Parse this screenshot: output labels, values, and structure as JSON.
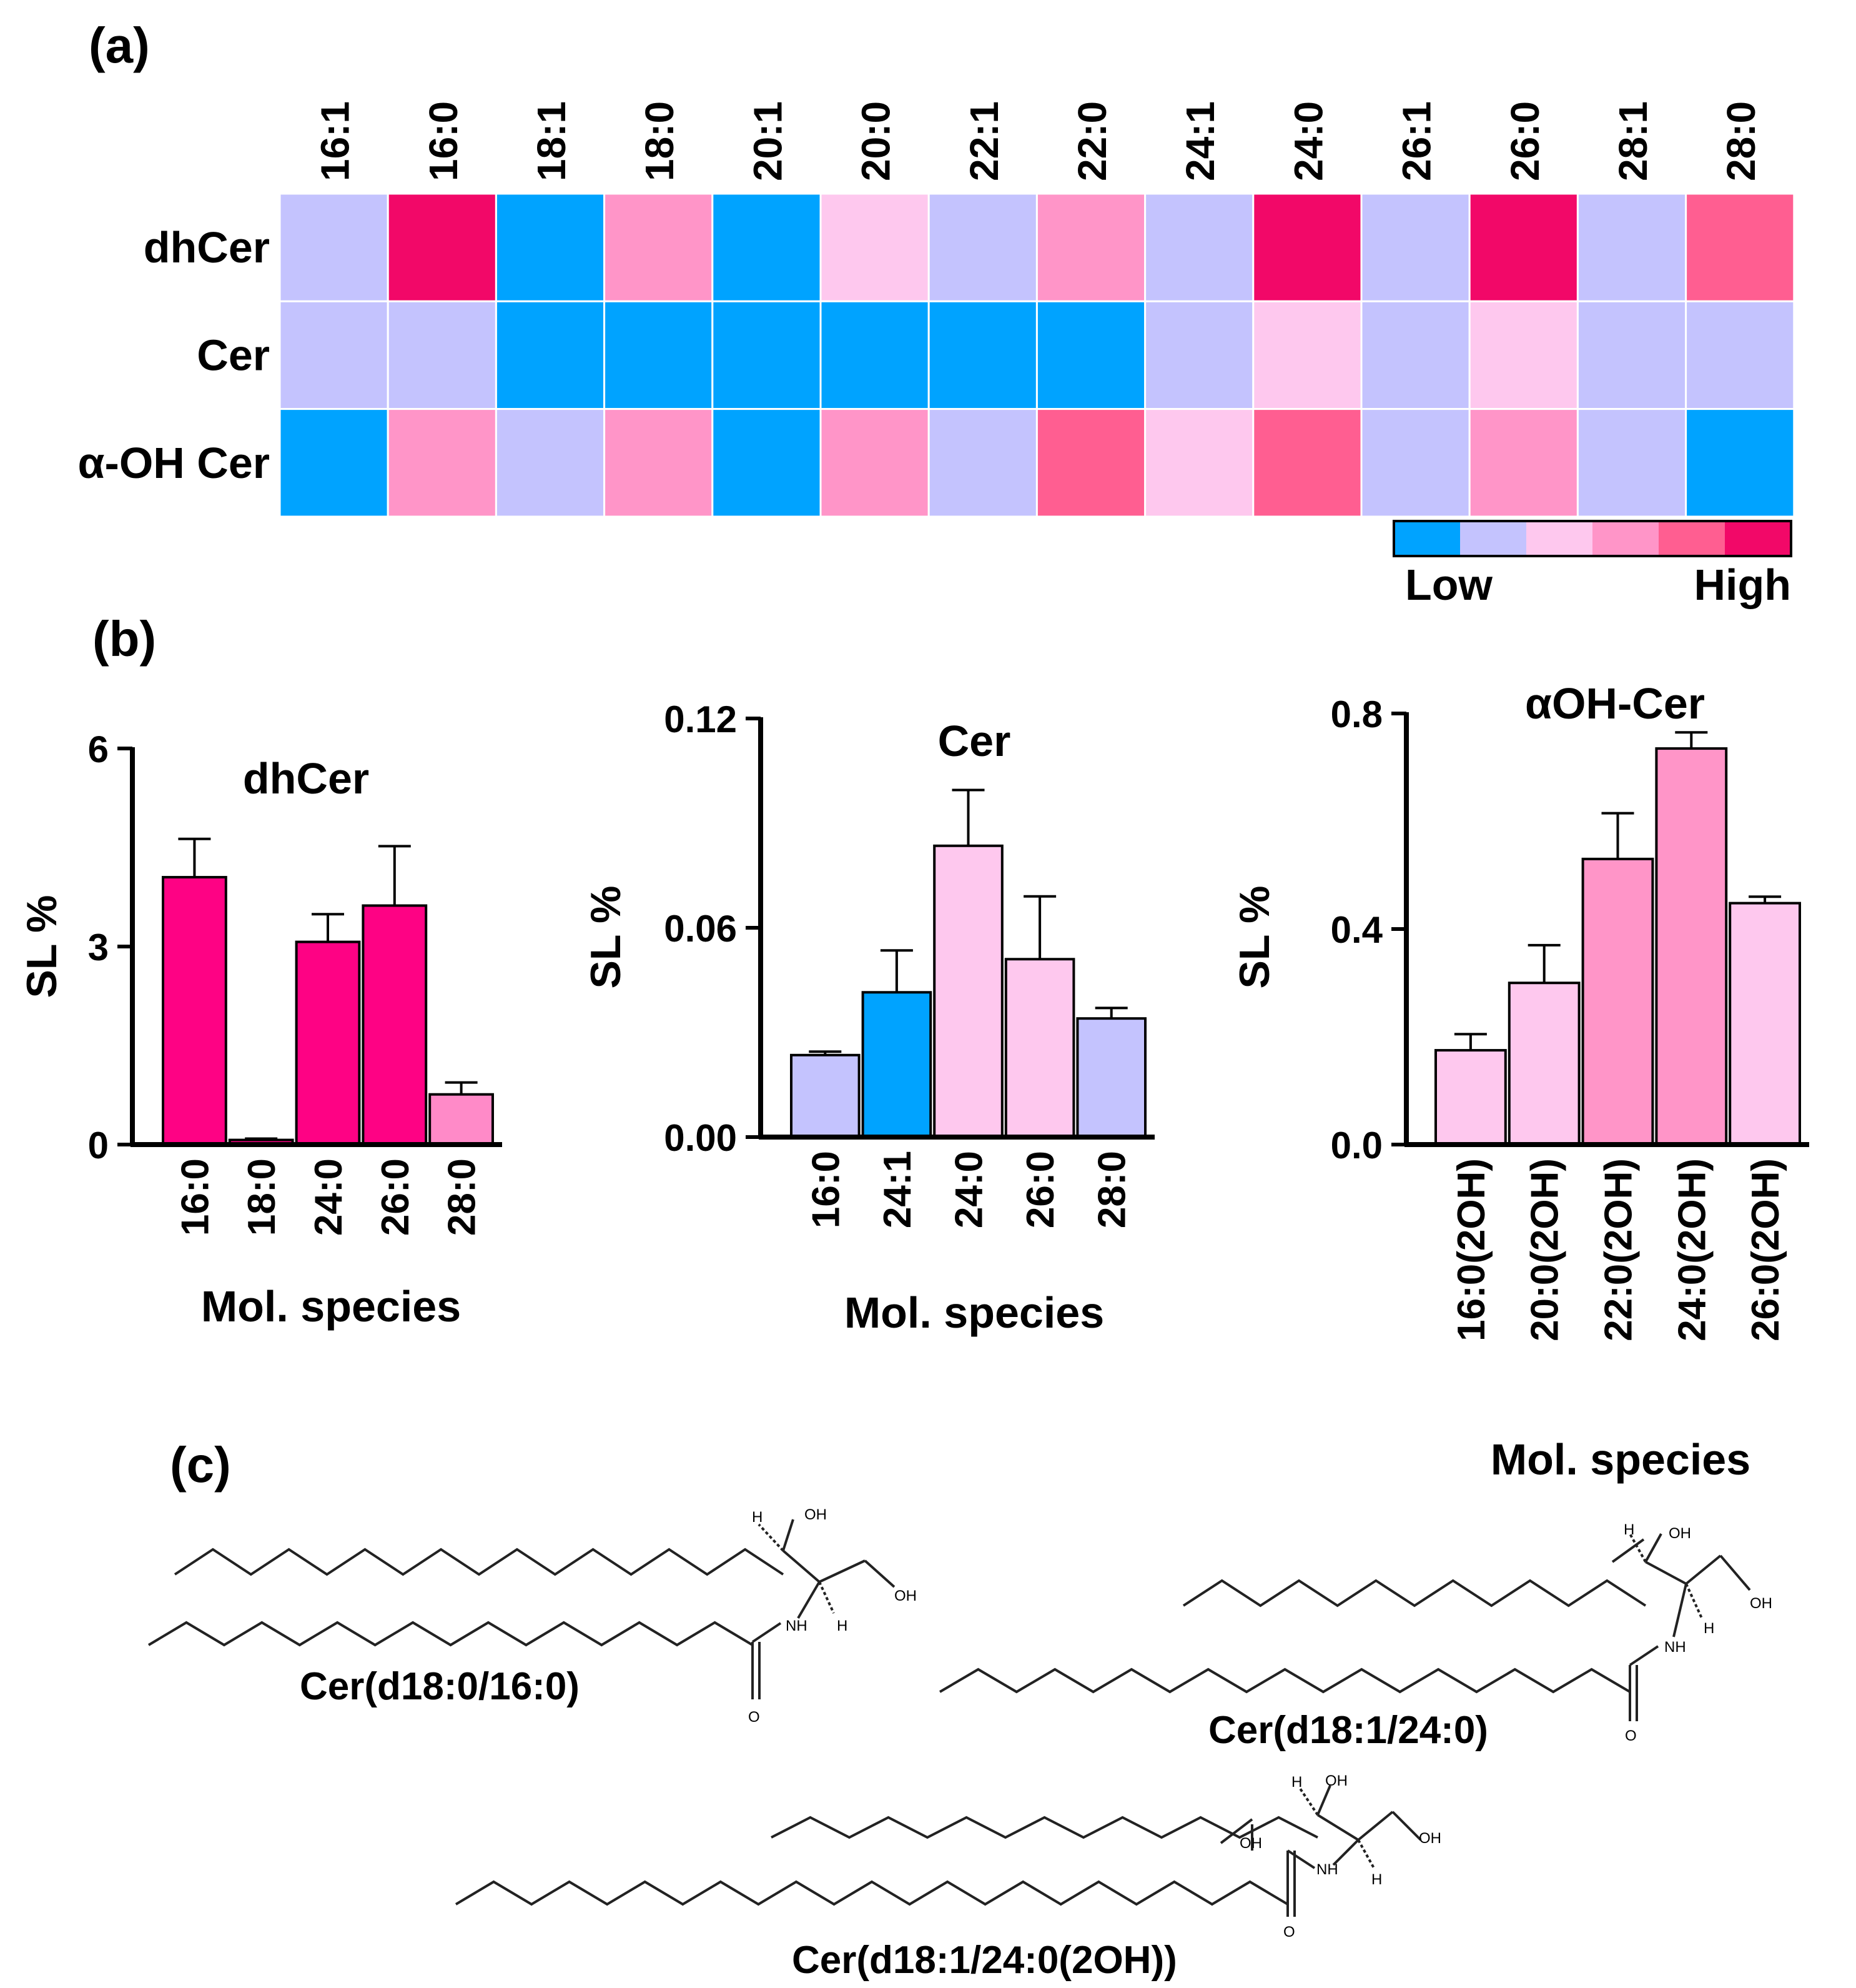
{
  "panels": {
    "a": "(a)",
    "b": "(b)",
    "c": "(c)"
  },
  "palette": [
    "#00a3ff",
    "#c4c3fe",
    "#fec8ee",
    "#ff95c8",
    "#ff5e91",
    "#f20868"
  ],
  "chart_data": [
    {
      "type": "heatmap",
      "columns": [
        "16:1",
        "16:0",
        "18:1",
        "18:0",
        "20:1",
        "20:0",
        "22:1",
        "22:0",
        "24:1",
        "24:0",
        "26:1",
        "26:0",
        "28:1",
        "28:0"
      ],
      "rows": [
        "dhCer",
        "Cer",
        "α-OH Cer"
      ],
      "levels": [
        [
          1,
          5,
          0,
          3,
          0,
          2,
          1,
          3,
          1,
          5,
          1,
          5,
          1,
          4
        ],
        [
          1,
          1,
          0,
          0,
          0,
          0,
          0,
          0,
          1,
          2,
          1,
          2,
          1,
          1
        ],
        [
          0,
          3,
          1,
          3,
          0,
          3,
          1,
          4,
          2,
          4,
          1,
          3,
          1,
          0
        ]
      ],
      "scale": {
        "low_label": "Low",
        "high_label": "High",
        "steps": 6
      }
    },
    {
      "type": "bar",
      "title": "dhCer",
      "ylabel": "SL %",
      "xlabel": "Mol. species",
      "ylim": [
        0,
        6
      ],
      "yticks": [
        "0",
        "3",
        "6"
      ],
      "categories": [
        "16:0",
        "18:0",
        "24:0",
        "26:0",
        "28:0"
      ],
      "values": [
        4.05,
        0.07,
        3.07,
        3.62,
        0.76
      ],
      "errors": [
        0.58,
        0.02,
        0.42,
        0.9,
        0.18
      ],
      "colors": [
        "#fe0284",
        "#fe0284",
        "#fe0284",
        "#fe0284",
        "#ff8ac8"
      ]
    },
    {
      "type": "bar",
      "title": "Cer",
      "ylabel": "SL %",
      "xlabel": "Mol. species",
      "ylim": [
        0,
        0.12
      ],
      "yticks": [
        "0.00",
        "0.06",
        "0.12"
      ],
      "categories": [
        "16:0",
        "24:1",
        "24:0",
        "26:0",
        "28:0"
      ],
      "values": [
        0.0235,
        0.0415,
        0.0835,
        0.051,
        0.034
      ],
      "errors": [
        0.001,
        0.012,
        0.016,
        0.018,
        0.003
      ],
      "colors": [
        "#c4c3fe",
        "#00a3ff",
        "#fec8ee",
        "#fec8ee",
        "#c4c3fe"
      ]
    },
    {
      "type": "bar",
      "title": "αOH-Cer",
      "ylabel": "SL %",
      "xlabel": "Mol. species",
      "ylim": [
        0,
        0.8
      ],
      "yticks": [
        "0.0",
        "0.4",
        "0.8"
      ],
      "categories": [
        "16:0(2OH)",
        "20:0(2OH)",
        "22:0(2OH)",
        "24:0(2OH)",
        "26:0(2OH)"
      ],
      "values": [
        0.175,
        0.3,
        0.53,
        0.735,
        0.448
      ],
      "errors": [
        0.03,
        0.07,
        0.085,
        0.03,
        0.012
      ],
      "colors": [
        "#fec8ee",
        "#fec8ee",
        "#ff95c8",
        "#ff95c8",
        "#fec8ee"
      ]
    }
  ],
  "structures": {
    "names": [
      "Cer(d18:0/16:0)",
      "Cer(d18:1/24:0)",
      "Cer(d18:1/24:0(2OH))"
    ],
    "atoms": {
      "oh": "OH",
      "h": "H",
      "nh": "NH",
      "o": "O"
    }
  }
}
